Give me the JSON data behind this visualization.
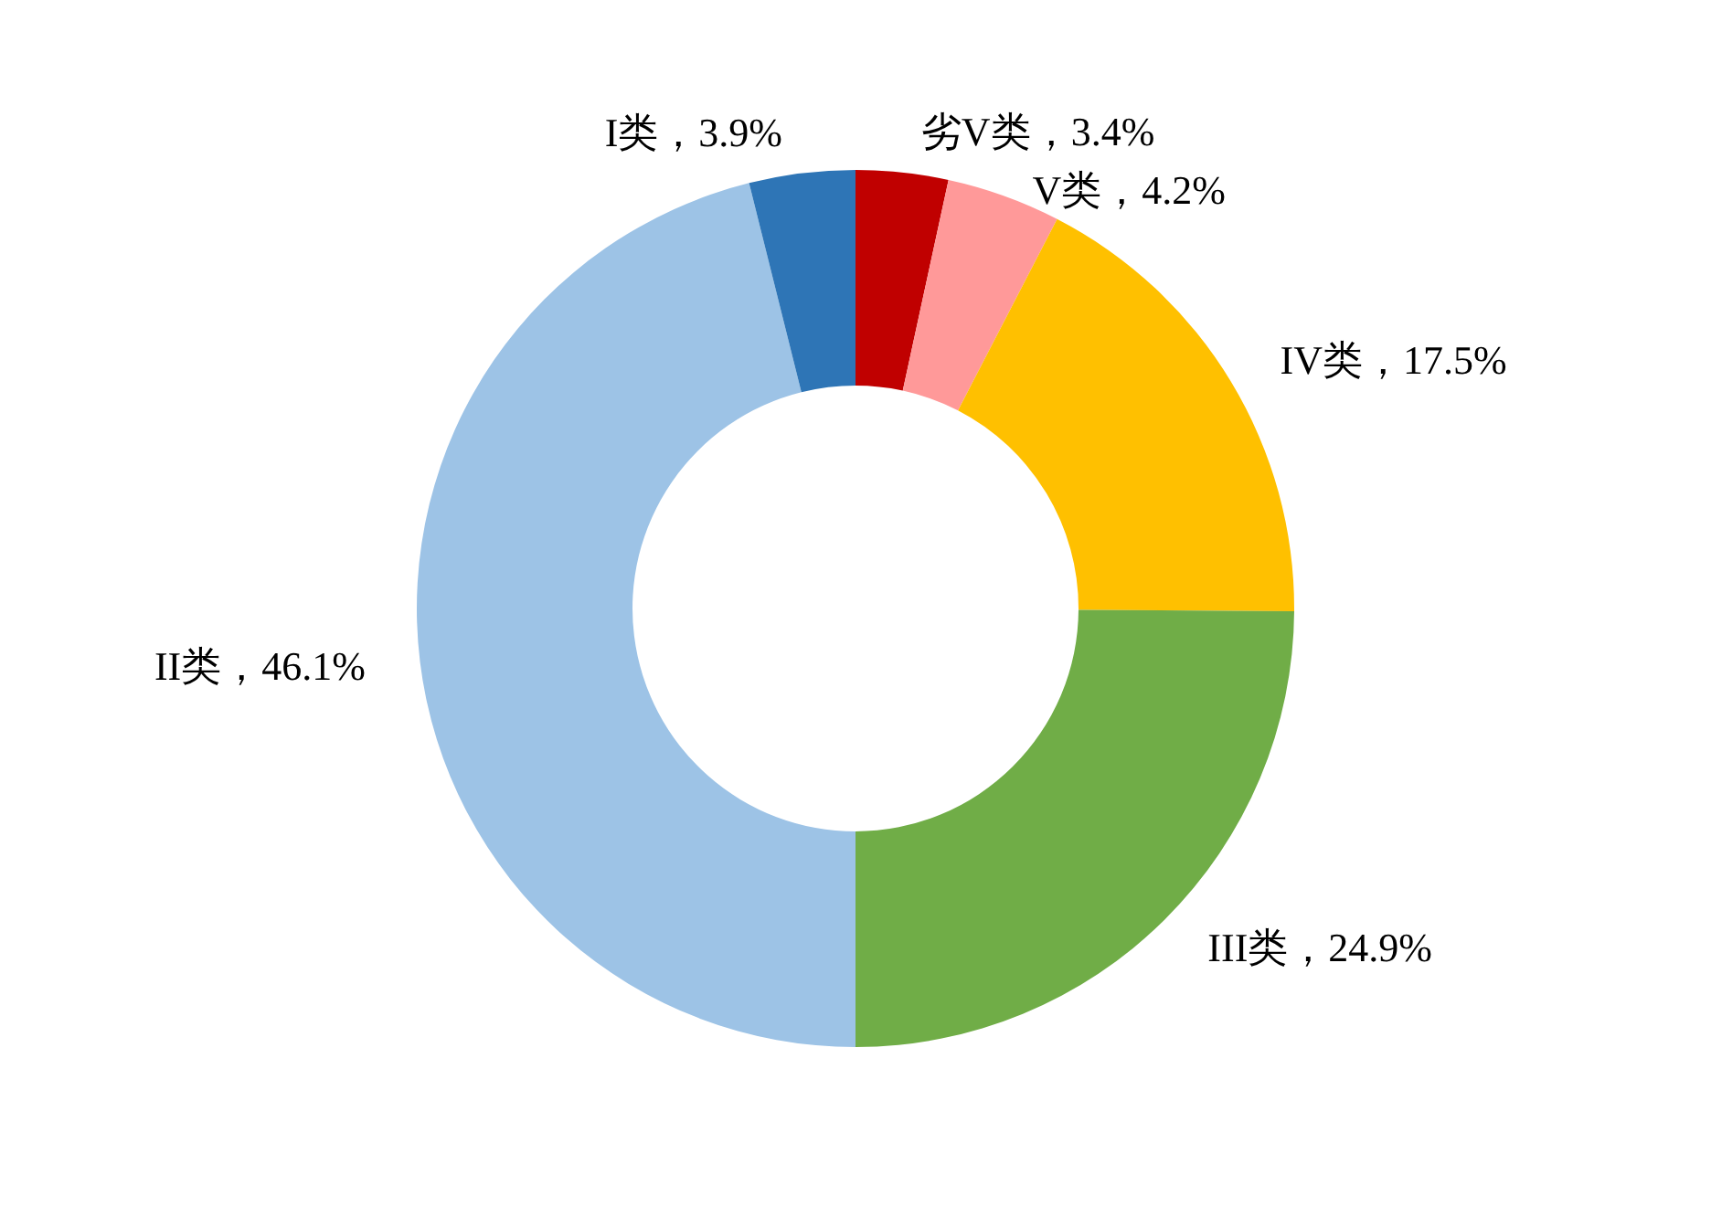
{
  "chart_data": {
    "type": "donut",
    "categories": [
      "劣V类",
      "V类",
      "IV类",
      "III类",
      "II类",
      "I类"
    ],
    "values": [
      3.4,
      4.2,
      17.5,
      24.9,
      46.1,
      3.9
    ],
    "colors": [
      "#c00000",
      "#ff9999",
      "#ffc000",
      "#70ad47",
      "#9dc3e6",
      "#2e75b6"
    ],
    "value_labels": [
      "，3.4%",
      "，4.2%",
      "，17.5%",
      "，24.9%",
      "，46.1%",
      "，3.9%"
    ]
  }
}
